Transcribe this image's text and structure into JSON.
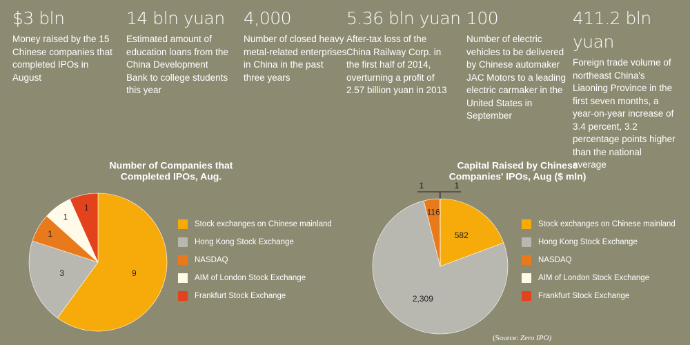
{
  "stats": [
    {
      "figure": "$3 bln",
      "text": "Money raised by the 15 Chinese companies that completed IPOs in August"
    },
    {
      "figure": "14 bln yuan",
      "text": "Estimated amount of education loans from the China Development Bank to college students this year"
    },
    {
      "figure": "4,000",
      "text": "Number of closed heavy metal-related enterprises in China in the past three years"
    },
    {
      "figure": "5.36 bln yuan",
      "text": "After-tax loss of the China Railway Corp. in the first half of 2014, overturning a profit of 2.57 billion yuan in 2013"
    },
    {
      "figure": "100",
      "text": "Number of electric vehicles to be delivered by Chinese automaker JAC Motors to a leading electric carmaker in the United States in September"
    },
    {
      "figure": "411.2 bln yuan",
      "text": "Foreign trade volume of northeast China's Liaoning Province in the first seven months, a year-on-year increase of 3.4 percent, 3.2 percentage points higher than the national average"
    }
  ],
  "chart_data": [
    {
      "type": "pie",
      "title": [
        "Number of Companies that",
        "Completed IPOs, Aug."
      ],
      "categories": [
        "Stock exchanges on Chinese mainland",
        "Hong Kong Stock Exchange",
        "NASDAQ",
        "AIM of London Stock Exchange",
        "Frankfurt Stock Exchange"
      ],
      "values": [
        9,
        3,
        1,
        1,
        1
      ],
      "colors": [
        "#f7ab0a",
        "#b9b8b0",
        "#e97a1c",
        "#fffbe8",
        "#e2421c"
      ]
    },
    {
      "type": "pie",
      "title": [
        "Capital Raised by Chinese",
        "Companies' IPOs, Aug ($ mln)"
      ],
      "categories": [
        "Stock exchanges on Chinese mainland",
        "Hong Kong Stock Exchange",
        "NASDAQ",
        "AIM of London Stock Exchange",
        "Frankfurt Stock Exchange"
      ],
      "values": [
        582,
        2309,
        116,
        1,
        1
      ],
      "value_labels": [
        "582",
        "2,309",
        "116",
        "1",
        "1"
      ],
      "colors": [
        "#f7ab0a",
        "#b9b8b0",
        "#e97a1c",
        "#fffbe8",
        "#e2421c"
      ]
    }
  ],
  "source": {
    "label": "(Source:",
    "name": "Zero IPO)"
  }
}
